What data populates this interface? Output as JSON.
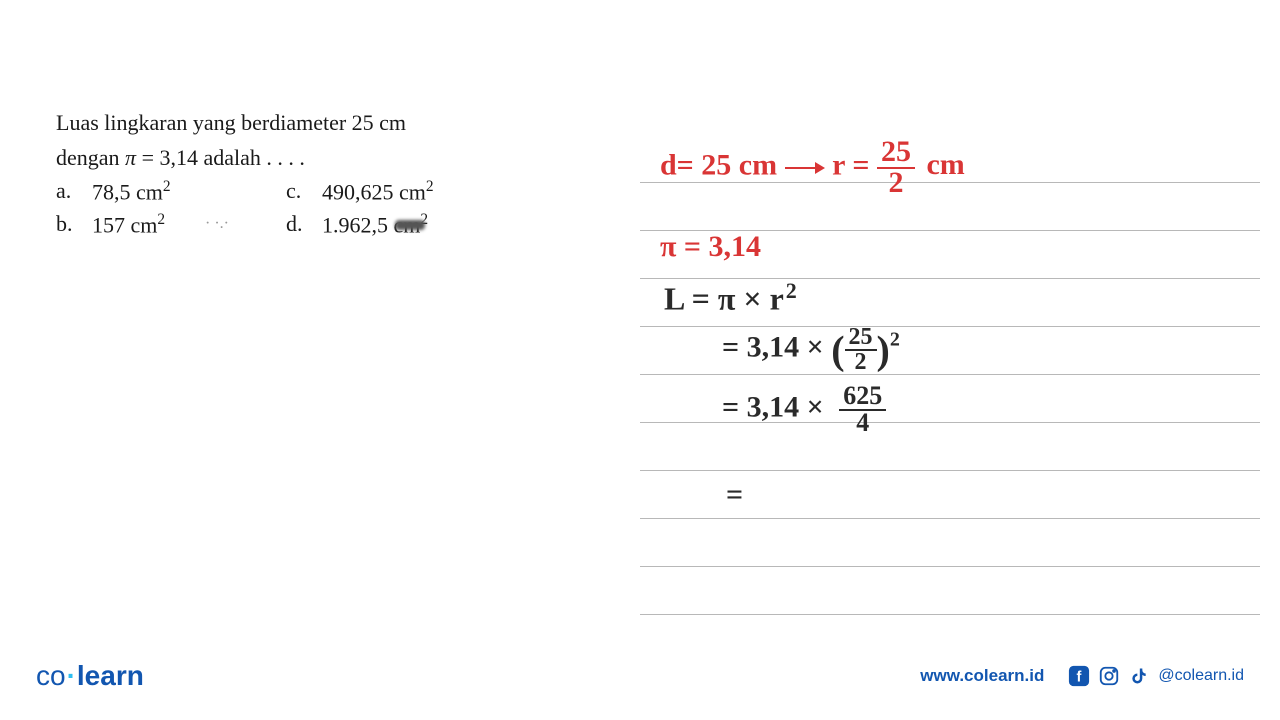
{
  "question": {
    "line1": "Luas lingkaran yang berdiameter 25 cm",
    "line2_prefix": "dengan ",
    "pi_symbol": "π",
    "line2_eq": " = 3,14 adalah . . . .",
    "options": [
      {
        "label": "a.",
        "value": "78,5 cm",
        "sup": "2"
      },
      {
        "label": "b.",
        "value": "157 cm",
        "sup": "2"
      },
      {
        "label": "c.",
        "value": "490,625 cm",
        "sup": "2"
      },
      {
        "label": "d.",
        "value": "1.962,5 cm",
        "sup": "2"
      }
    ]
  },
  "handwriting": {
    "text_color_red": "#d93535",
    "text_color_black": "#2a2a2a",
    "line1_d": "d= 25 cm",
    "line1_r": "r =",
    "line1_frac_num": "25",
    "line1_frac_den": "2",
    "line1_unit": "cm",
    "line2": "π = 3,14",
    "line3_L": "L = π × r",
    "line3_exp": "2",
    "line4_eq": "= 3,14 ×",
    "line4_frac_num": "25",
    "line4_frac_den": "2",
    "line4_exp": "2",
    "line5_eq": "= 3,14 ×",
    "line5_frac_num": "625",
    "line5_frac_den": "4",
    "line6": "=",
    "font_size_main": 28
  },
  "notebook": {
    "line_color": "#b8b8b8",
    "line_positions": [
      52,
      100,
      148,
      196,
      244,
      292,
      340,
      388,
      436,
      484
    ]
  },
  "footer": {
    "logo_co": "co",
    "logo_learn": "learn",
    "url": "www.colearn.id",
    "handle": "@colearn.id",
    "brand_color": "#1256b0"
  }
}
